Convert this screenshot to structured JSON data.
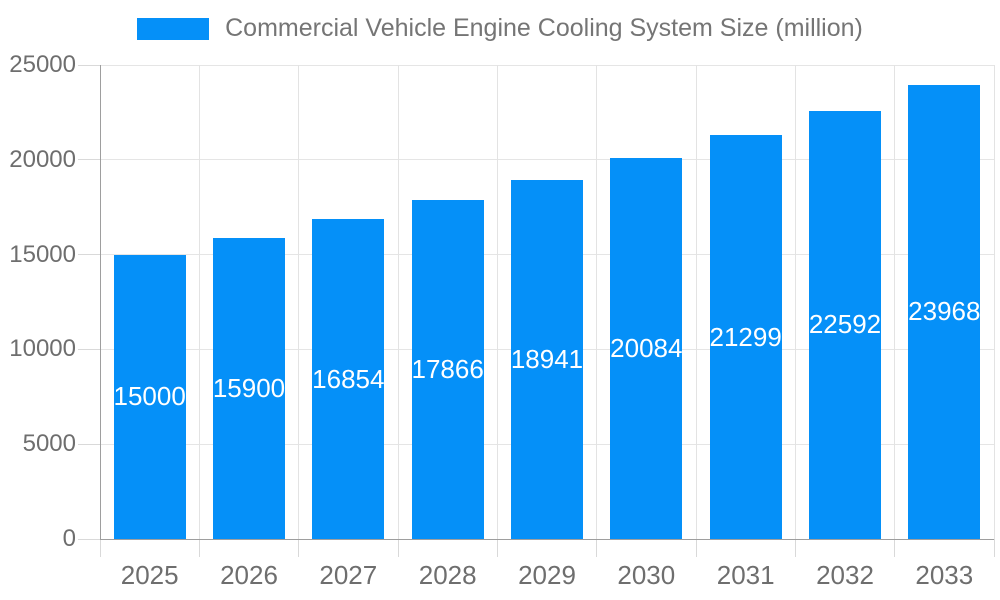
{
  "chart_data": {
    "type": "bar",
    "title": "Commercial Vehicle Engine Cooling System Size (million)",
    "categories": [
      "2025",
      "2026",
      "2027",
      "2028",
      "2029",
      "2030",
      "2031",
      "2032",
      "2033"
    ],
    "values": [
      15000,
      15900,
      16854,
      17866,
      18941,
      20084,
      21299,
      22592,
      23968
    ],
    "series": [
      {
        "name": "Commercial Vehicle Engine Cooling System Size (million)",
        "values": [
          15000,
          15900,
          16854,
          17866,
          18941,
          20084,
          21299,
          22592,
          23968
        ]
      }
    ],
    "xlabel": "",
    "ylabel": "",
    "ylim": [
      0,
      25000
    ],
    "yticks": [
      0,
      5000,
      10000,
      15000,
      20000,
      25000
    ],
    "ytick_labels": [
      "0",
      "5000",
      "10000",
      "15000",
      "20000",
      "25000"
    ],
    "grid": true,
    "legend_position": "top-center",
    "value_labels_inside_bars": true,
    "colors": {
      "bar": "#0590f8",
      "value_label": "#ffffff",
      "axis_label": "#6e6e6e",
      "title": "#757575",
      "gridline": "#e5e5e5",
      "axis_line": "#9e9e9e",
      "background": "#ffffff"
    }
  }
}
